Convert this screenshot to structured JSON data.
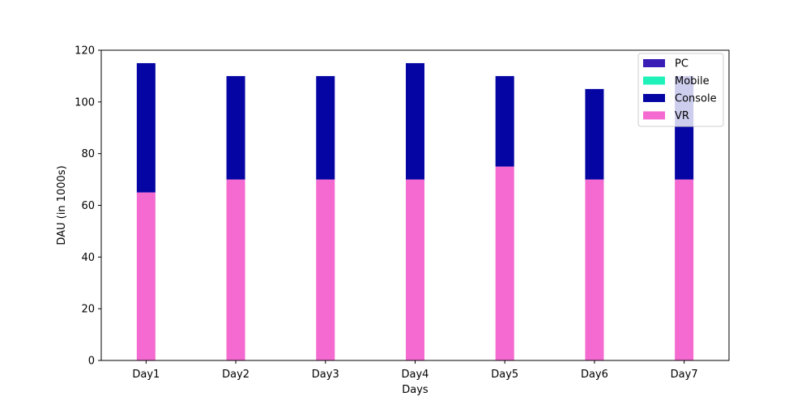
{
  "chart_data": {
    "type": "bar",
    "stacked": true,
    "title": "",
    "xlabel": "Days",
    "ylabel": "DAU (in 1000s)",
    "categories": [
      "Day1",
      "Day2",
      "Day3",
      "Day4",
      "Day5",
      "Day6",
      "Day7"
    ],
    "ylim": [
      0,
      120
    ],
    "yticks": [
      0,
      20,
      40,
      60,
      80,
      100,
      120
    ],
    "grid": false,
    "legend_position": "top-right",
    "series": [
      {
        "name": "PC",
        "color": "#3a1db5",
        "values": [
          0,
          0,
          0,
          0,
          0,
          0,
          0
        ]
      },
      {
        "name": "Mobile",
        "color": "#1ef2b8",
        "values": [
          0,
          0,
          0,
          0,
          0,
          0,
          0
        ]
      },
      {
        "name": "Console",
        "color": "#0505a3",
        "values": [
          50,
          40,
          40,
          45,
          35,
          35,
          40
        ]
      },
      {
        "name": "VR",
        "color": "#f46ad0",
        "values": [
          65,
          70,
          70,
          70,
          75,
          70,
          70
        ]
      }
    ],
    "draw_order": [
      "VR",
      "Console",
      "Mobile",
      "PC"
    ]
  }
}
